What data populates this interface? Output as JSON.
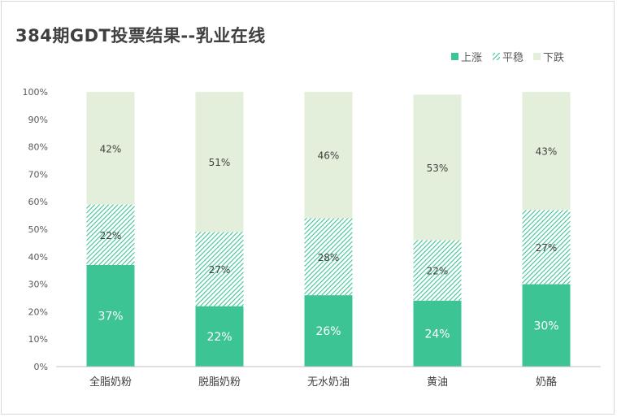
{
  "chart_data": {
    "type": "bar",
    "stacked": true,
    "title": "384期GDT投票结果--乳业在线",
    "categories": [
      "全脂奶粉",
      "脱脂奶粉",
      "无水奶油",
      "黄油",
      "奶酪"
    ],
    "series": [
      {
        "name": "上涨",
        "values": [
          37,
          22,
          26,
          24,
          30
        ],
        "labels": [
          "37%",
          "22%",
          "26%",
          "24%",
          "30%"
        ],
        "color": "#3cc494",
        "pattern": "solid"
      },
      {
        "name": "平稳",
        "values": [
          22,
          27,
          28,
          22,
          27
        ],
        "labels": [
          "22%",
          "27%",
          "28%",
          "22%",
          "27%"
        ],
        "color": "#3cc494",
        "pattern": "hatch"
      },
      {
        "name": "下跌",
        "values": [
          42,
          51,
          46,
          53,
          43
        ],
        "labels": [
          "42%",
          "51%",
          "46%",
          "53%",
          "43%"
        ],
        "color": "#e3efda",
        "pattern": "solid"
      }
    ],
    "ylim": [
      0,
      100
    ],
    "yticks": [
      "0%",
      "10%",
      "20%",
      "30%",
      "40%",
      "50%",
      "60%",
      "70%",
      "80%",
      "90%",
      "100%"
    ],
    "grid": false,
    "legend_position": "top-right"
  }
}
